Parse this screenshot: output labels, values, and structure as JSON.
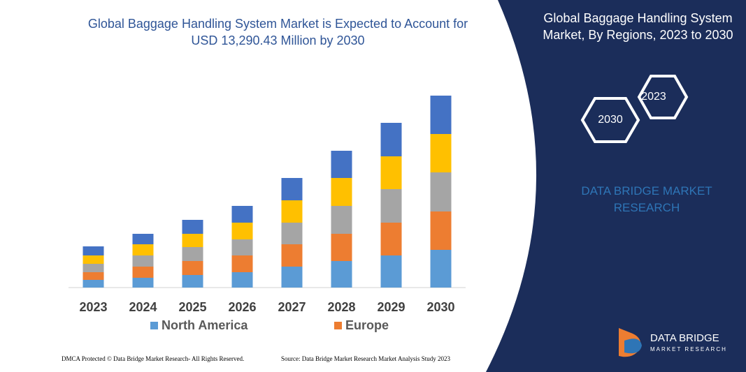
{
  "chart_data": {
    "type": "stacked_bar",
    "title": "Global Baggage Handling System Market is Expected to Account for USD 13,290.43 Million by 2030",
    "categories": [
      "2023",
      "2024",
      "2025",
      "2026",
      "2027",
      "2028",
      "2029",
      "2030"
    ],
    "series": [
      {
        "name": "North America",
        "color": "#5b9bd5",
        "values": [
          11,
          14,
          18,
          22,
          30,
          38,
          46,
          54
        ]
      },
      {
        "name": "Europe",
        "color": "#ed7d31",
        "values": [
          11,
          16,
          20,
          24,
          32,
          39,
          47,
          55
        ]
      },
      {
        "color": "#a5a5a5",
        "values": [
          12,
          16,
          20,
          23,
          31,
          40,
          48,
          56
        ]
      },
      {
        "color": "#ffc000",
        "values": [
          12,
          16,
          19,
          24,
          32,
          40,
          47,
          55
        ]
      },
      {
        "color": "#4472c4",
        "values": [
          13,
          15,
          20,
          24,
          32,
          39,
          48,
          55
        ]
      }
    ],
    "ylim": [
      0,
      280
    ]
  },
  "panel": {
    "title": "Global Baggage Handling System Market, By Regions, 2023 to 2030",
    "hexagons": [
      "2023",
      "2030"
    ],
    "brand": "DATA BRIDGE MARKET RESEARCH"
  },
  "logo": {
    "name": "DATA BRIDGE",
    "tagline": "MARKET RESEARCH"
  },
  "footer": {
    "left": "DMCA Protected © Data Bridge Market Research- All Rights Reserved.",
    "right": "Source: Data Bridge Market Research Market Analysis Study 2023"
  }
}
